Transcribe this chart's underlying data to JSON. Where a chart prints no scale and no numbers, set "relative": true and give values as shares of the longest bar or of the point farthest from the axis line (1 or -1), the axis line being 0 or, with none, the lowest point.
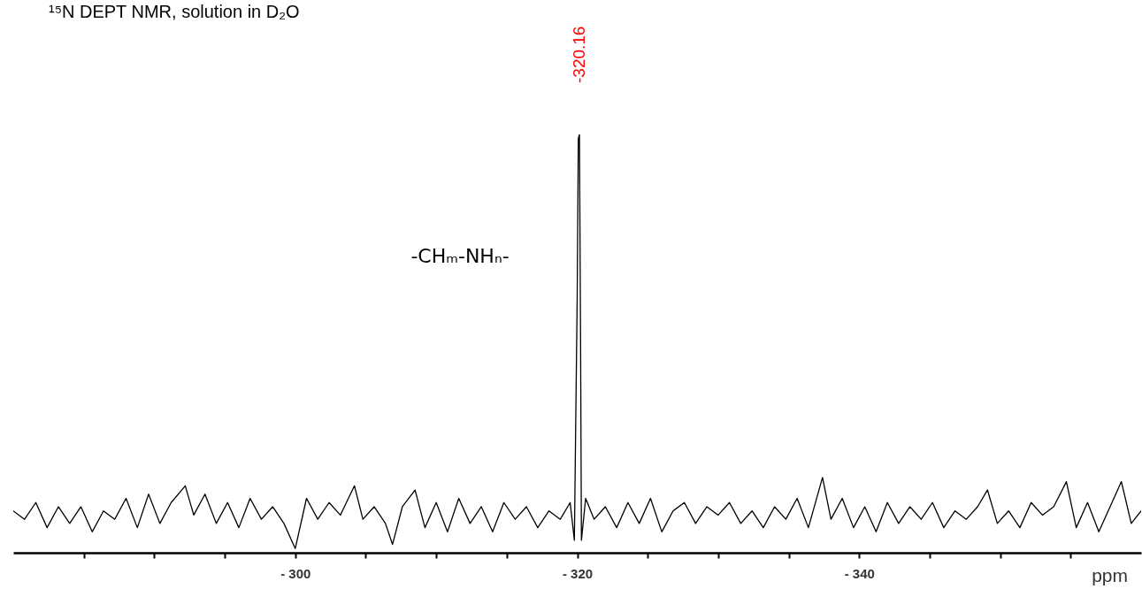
{
  "chart_data": {
    "type": "line",
    "title": "¹⁵N DEPT NMR, solution in D₂O",
    "xlabel": "ppm",
    "relative": true,
    "color": "#000000",
    "xlim": [
      -280,
      -360
    ],
    "xticks": [
      {
        "value": -285,
        "label": null
      },
      {
        "value": -290,
        "label": null
      },
      {
        "value": -295,
        "label": null
      },
      {
        "value": -300,
        "label": "- 300"
      },
      {
        "value": -305,
        "label": null
      },
      {
        "value": -310,
        "label": null
      },
      {
        "value": -315,
        "label": null
      },
      {
        "value": -320,
        "label": "- 320"
      },
      {
        "value": -325,
        "label": null
      },
      {
        "value": -330,
        "label": null
      },
      {
        "value": -335,
        "label": null
      },
      {
        "value": -340,
        "label": "- 340"
      },
      {
        "value": -345,
        "label": null
      },
      {
        "value": -350,
        "label": null
      },
      {
        "value": -355,
        "label": null
      }
    ],
    "annotations": [
      "-320.16",
      "-CHₘ-NHₙ-"
    ],
    "x": [
      -280,
      -280.8,
      -281.6,
      -282.4,
      -283.2,
      -284,
      -284.8,
      -285.6,
      -286.4,
      -287.2,
      -288,
      -288.8,
      -289.6,
      -290.4,
      -291.2,
      -292.2,
      -292.8,
      -293.6,
      -294.4,
      -295.2,
      -296,
      -296.8,
      -297.6,
      -298.4,
      -299.2,
      -300,
      -300.8,
      -301.6,
      -302.4,
      -303.2,
      -304.2,
      -304.8,
      -305.6,
      -306.4,
      -306.9,
      -307.6,
      -308.5,
      -309.2,
      -310,
      -310.8,
      -311.6,
      -312.4,
      -313.2,
      -314,
      -314.8,
      -315.6,
      -316.4,
      -317.2,
      -318,
      -318.8,
      -319.5,
      -319.8,
      -320,
      -320.08,
      -320.16,
      -320.24,
      -320.3,
      -320.6,
      -321.2,
      -322,
      -322.8,
      -323.6,
      -324.4,
      -325.2,
      -326,
      -326.8,
      -327.6,
      -328.4,
      -329.2,
      -330,
      -330.8,
      -331.6,
      -332.4,
      -333.2,
      -334,
      -334.8,
      -335.6,
      -336.4,
      -337.4,
      -338,
      -338.8,
      -339.6,
      -340.4,
      -341.2,
      -342,
      -342.8,
      -343.6,
      -344.4,
      -345.2,
      -346,
      -346.8,
      -347.6,
      -348.4,
      -349.1,
      -349.8,
      -350.6,
      -351.4,
      -352.2,
      -353,
      -353.8,
      -354.7,
      -355.4,
      -356.2,
      -357,
      -357.8,
      -358.6,
      -359.3,
      -360
    ],
    "values": [
      0.1,
      0.08,
      0.12,
      0.06,
      0.11,
      0.07,
      0.11,
      0.05,
      0.1,
      0.08,
      0.13,
      0.06,
      0.14,
      0.07,
      0.12,
      0.16,
      0.09,
      0.14,
      0.07,
      0.12,
      0.06,
      0.13,
      0.08,
      0.11,
      0.07,
      0.01,
      0.13,
      0.08,
      0.12,
      0.09,
      0.16,
      0.08,
      0.11,
      0.07,
      0.02,
      0.11,
      0.15,
      0.06,
      0.12,
      0.05,
      0.13,
      0.07,
      0.11,
      0.05,
      0.12,
      0.08,
      0.11,
      0.06,
      0.1,
      0.08,
      0.12,
      0.03,
      0.61,
      0.99,
      1,
      0.51,
      0.03,
      0.13,
      0.08,
      0.11,
      0.06,
      0.12,
      0.07,
      0.13,
      0.05,
      0.1,
      0.12,
      0.07,
      0.11,
      0.09,
      0.12,
      0.07,
      0.1,
      0.06,
      0.11,
      0.08,
      0.13,
      0.06,
      0.18,
      0.08,
      0.13,
      0.06,
      0.11,
      0.05,
      0.12,
      0.07,
      0.11,
      0.08,
      0.12,
      0.06,
      0.1,
      0.08,
      0.11,
      0.15,
      0.07,
      0.1,
      0.06,
      0.12,
      0.09,
      0.11,
      0.17,
      0.06,
      0.12,
      0.05,
      0.11,
      0.17,
      0.07,
      0.1
    ]
  }
}
